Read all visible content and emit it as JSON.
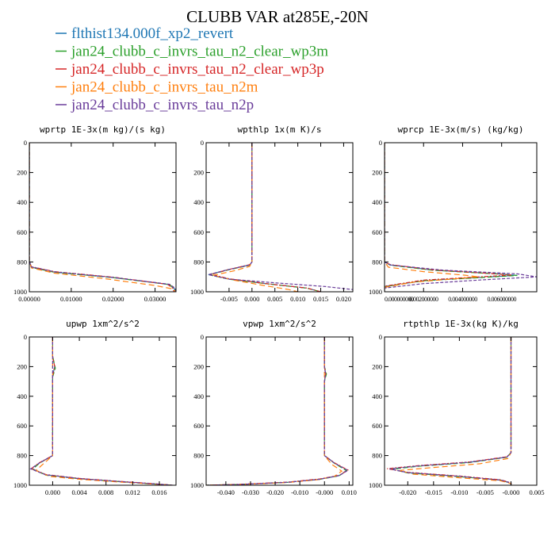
{
  "figure": {
    "title": "CLUBB VAR at285E,-20N"
  },
  "colors": {
    "flthist134.000f_xp2_revert": "#1f77b4",
    "jan24_clubb_c_invrs_tau_n2_clear_wp3m": "#2ca02c",
    "jan24_clubb_c_invrs_tau_n2_clear_wp3p": "#d62728",
    "jan24_clubb_c_invrs_tau_n2m": "#ff7f0e",
    "jan24_clubb_c_invrs_tau_n2p": "#6a3d9a"
  },
  "legend": {
    "entries": [
      {
        "label": "flthist134.000f_xp2_revert",
        "color": "#1f77b4"
      },
      {
        "label": "jan24_clubb_c_invrs_tau_n2_clear_wp3m",
        "color": "#2ca02c"
      },
      {
        "label": "jan24_clubb_c_invrs_tau_n2_clear_wp3p",
        "color": "#d62728"
      },
      {
        "label": "jan24_clubb_c_invrs_tau_n2m",
        "color": "#ff7f0e"
      },
      {
        "label": "jan24_clubb_c_invrs_tau_n2p",
        "color": "#6a3d9a"
      }
    ]
  },
  "chart_data": [
    {
      "type": "line",
      "title": "wprtp  1E-3x(m kg)/(s kg)",
      "xlim": [
        0,
        0.035
      ],
      "ylim": [
        1000,
        0
      ],
      "xticks": [
        0,
        0.01,
        0.02,
        0.03
      ],
      "xtick_labels": [
        "0.00000",
        "0.01000",
        "0.02000",
        "0.03000"
      ],
      "yticks": [
        0,
        200,
        400,
        600,
        800,
        1000
      ],
      "ytick_labels": [
        "0",
        "200",
        "400",
        "600",
        "800",
        "1000"
      ],
      "series": [
        {
          "name": "flthist134.000f_xp2_revert",
          "x": [
            0,
            0,
            0.0005,
            0.006,
            0.02,
            0.033,
            0.0345,
            0.035
          ],
          "y": [
            0,
            795,
            835,
            868,
            905,
            950,
            975,
            1000
          ]
        },
        {
          "name": "jan24_clubb_c_invrs_tau_n2_clear_wp3m",
          "x": [
            0,
            0,
            0.0005,
            0.006,
            0.02,
            0.0335,
            0.0345,
            0.035
          ],
          "y": [
            0,
            795,
            836,
            869,
            905,
            952,
            978,
            1000
          ]
        },
        {
          "name": "jan24_clubb_c_invrs_tau_n2_clear_wp3p",
          "x": [
            0,
            0,
            0.0005,
            0.006,
            0.02,
            0.033,
            0.0342,
            0.0345
          ],
          "y": [
            0,
            795,
            832,
            865,
            902,
            950,
            975,
            1000
          ]
        },
        {
          "name": "jan24_clubb_c_invrs_tau_n2m",
          "x": [
            0,
            0,
            0.0005,
            0.006,
            0.018,
            0.03,
            0.034,
            0.035
          ],
          "y": [
            0,
            795,
            840,
            875,
            912,
            958,
            980,
            1000
          ]
        },
        {
          "name": "jan24_clubb_c_invrs_tau_n2p",
          "x": [
            0,
            0,
            0.0005,
            0.006,
            0.02,
            0.0335,
            0.0348,
            0.035
          ],
          "y": [
            0,
            795,
            833,
            866,
            903,
            950,
            976,
            1000
          ]
        }
      ]
    },
    {
      "type": "line",
      "title": "wpthlp  1x(m K)/s",
      "xlim": [
        -0.01,
        0.022
      ],
      "ylim": [
        1000,
        0
      ],
      "xticks": [
        -0.005,
        0,
        0.005,
        0.01,
        0.015,
        0.02
      ],
      "xtick_labels": [
        "-0.005",
        "0.000",
        "0.005",
        "0.010",
        "0.015",
        "0.020"
      ],
      "yticks": [
        0,
        200,
        400,
        600,
        800,
        1000
      ],
      "ytick_labels": [
        "0",
        "200",
        "400",
        "600",
        "800",
        "1000"
      ],
      "series": [
        {
          "name": "flthist134.000f_xp2_revert",
          "x": [
            0,
            0,
            -0.0005,
            -0.005,
            -0.0095,
            -0.005,
            0.003,
            0.012,
            0.015
          ],
          "y": [
            0,
            800,
            820,
            850,
            885,
            915,
            945,
            975,
            1000
          ]
        },
        {
          "name": "jan24_clubb_c_invrs_tau_n2_clear_wp3m",
          "x": [
            0,
            0,
            -0.0005,
            -0.005,
            -0.0093,
            -0.005,
            0.003,
            0.012,
            0.015
          ],
          "y": [
            0,
            800,
            822,
            852,
            886,
            916,
            946,
            976,
            1000
          ]
        },
        {
          "name": "jan24_clubb_c_invrs_tau_n2_clear_wp3p",
          "x": [
            0,
            0,
            -0.0005,
            -0.005,
            -0.009,
            -0.005,
            0.003,
            0.012,
            0.015
          ],
          "y": [
            0,
            800,
            818,
            850,
            883,
            913,
            945,
            975,
            1000
          ]
        },
        {
          "name": "jan24_clubb_c_invrs_tau_n2m",
          "x": [
            0,
            0,
            -0.0005,
            -0.004,
            -0.0085,
            -0.004,
            0.002,
            0.008,
            0.01
          ],
          "y": [
            0,
            800,
            830,
            860,
            890,
            922,
            955,
            985,
            1000
          ]
        },
        {
          "name": "jan24_clubb_c_invrs_tau_n2p",
          "x": [
            0,
            0,
            -0.0005,
            -0.005,
            -0.0095,
            -0.005,
            0.005,
            0.016,
            0.022
          ],
          "y": [
            0,
            800,
            820,
            850,
            885,
            915,
            940,
            965,
            985
          ]
        }
      ]
    },
    {
      "type": "line",
      "title": "wprcp  1E-3x(m/s) (kg/kg)",
      "xlim": [
        0,
        0.0078
      ],
      "ylim": [
        1000,
        0
      ],
      "xticks": [
        0,
        0.002,
        0.004,
        0.006
      ],
      "xtick_labels": [
        "0.000000000",
        "0.002000000",
        "0.004000000",
        "0.006000000"
      ],
      "yticks": [
        0,
        200,
        400,
        600,
        800,
        1000
      ],
      "ytick_labels": [
        "0",
        "200",
        "400",
        "600",
        "800",
        "1000"
      ],
      "series": [
        {
          "name": "flthist134.000f_xp2_revert",
          "x": [
            0,
            0,
            0.0003,
            0.0025,
            0.0058,
            0.0068,
            0.002,
            0,
            0
          ],
          "y": [
            0,
            800,
            820,
            855,
            880,
            890,
            925,
            965,
            1000
          ]
        },
        {
          "name": "jan24_clubb_c_invrs_tau_n2_clear_wp3m",
          "x": [
            0,
            0,
            0.0003,
            0.0025,
            0.0058,
            0.0068,
            0.002,
            0,
            0
          ],
          "y": [
            0,
            800,
            822,
            856,
            881,
            891,
            926,
            966,
            1000
          ]
        },
        {
          "name": "jan24_clubb_c_invrs_tau_n2_clear_wp3p",
          "x": [
            0,
            0,
            0.0003,
            0.0025,
            0.0055,
            0.0065,
            0.002,
            0,
            0
          ],
          "y": [
            0,
            800,
            818,
            853,
            878,
            888,
            922,
            962,
            1000
          ]
        },
        {
          "name": "jan24_clubb_c_invrs_tau_n2m",
          "x": [
            0,
            0,
            0.0002,
            0.002,
            0.0042,
            0.0048,
            0.0015,
            0,
            0
          ],
          "y": [
            0,
            800,
            835,
            865,
            890,
            900,
            935,
            970,
            1000
          ]
        },
        {
          "name": "jan24_clubb_c_invrs_tau_n2p",
          "x": [
            0,
            0,
            0.0003,
            0.003,
            0.0068,
            0.0078,
            0.005,
            0.002,
            0
          ],
          "y": [
            0,
            800,
            820,
            855,
            880,
            900,
            920,
            945,
            975
          ]
        }
      ]
    },
    {
      "type": "line",
      "title": "upwp  1xm^2/s^2",
      "xlim": [
        -0.0035,
        0.0185
      ],
      "ylim": [
        1000,
        0
      ],
      "xticks": [
        0,
        0.004,
        0.008,
        0.012,
        0.016
      ],
      "xtick_labels": [
        "0.000",
        "0.004",
        "0.008",
        "0.012",
        "0.016"
      ],
      "yticks": [
        0,
        200,
        400,
        600,
        800,
        1000
      ],
      "ytick_labels": [
        "0",
        "200",
        "400",
        "600",
        "800",
        "1000"
      ],
      "series": [
        {
          "name": "flthist134.000f_xp2_revert",
          "x": [
            0,
            0,
            0.0003,
            0,
            0,
            -0.002,
            -0.003,
            -0.001,
            0.004,
            0.01,
            0.015,
            0.018
          ],
          "y": [
            0,
            130,
            200,
            260,
            800,
            850,
            890,
            930,
            955,
            975,
            990,
            1000
          ]
        },
        {
          "name": "jan24_clubb_c_invrs_tau_n2_clear_wp3m",
          "x": [
            0,
            0,
            0.0004,
            0,
            0,
            -0.002,
            -0.003,
            -0.001,
            0.004,
            0.01,
            0.015,
            0.018
          ],
          "y": [
            0,
            130,
            210,
            270,
            800,
            852,
            892,
            932,
            956,
            976,
            991,
            1000
          ]
        },
        {
          "name": "jan24_clubb_c_invrs_tau_n2_clear_wp3p",
          "x": [
            0,
            0,
            0.0003,
            0,
            0,
            -0.002,
            -0.0032,
            -0.001,
            0.004,
            0.01,
            0.015,
            0.018
          ],
          "y": [
            0,
            130,
            200,
            260,
            800,
            848,
            888,
            928,
            954,
            974,
            989,
            1000
          ]
        },
        {
          "name": "jan24_clubb_c_invrs_tau_n2m",
          "x": [
            0,
            0,
            0,
            0,
            0,
            -0.0015,
            -0.0025,
            -0.0005,
            0.004,
            0.01,
            0.015,
            0.018
          ],
          "y": [
            0,
            130,
            200,
            260,
            800,
            860,
            900,
            940,
            960,
            978,
            992,
            1000
          ]
        },
        {
          "name": "jan24_clubb_c_invrs_tau_n2p",
          "x": [
            0,
            0,
            0,
            0,
            0,
            -0.002,
            -0.0033,
            -0.001,
            0.004,
            0.01,
            0.015,
            0.018
          ],
          "y": [
            0,
            130,
            200,
            260,
            800,
            850,
            890,
            930,
            955,
            975,
            990,
            1000
          ]
        }
      ]
    },
    {
      "type": "line",
      "title": "vpwp  1xm^2/s^2",
      "xlim": [
        -0.048,
        0.0115
      ],
      "ylim": [
        1000,
        0
      ],
      "xticks": [
        -0.04,
        -0.03,
        -0.02,
        -0.01,
        0,
        0.01
      ],
      "xtick_labels": [
        "-0.040",
        "-0.030",
        "-0.020",
        "-0.010",
        "-0.000",
        "0.010"
      ],
      "yticks": [
        0,
        200,
        400,
        600,
        800,
        1000
      ],
      "ytick_labels": [
        "0",
        "200",
        "400",
        "600",
        "800",
        "1000"
      ],
      "series": [
        {
          "name": "flthist134.000f_xp2_revert",
          "x": [
            0,
            0,
            0.0005,
            0,
            0,
            0.004,
            0.009,
            0.006,
            -0.002,
            -0.015,
            -0.035,
            -0.048
          ],
          "y": [
            0,
            200,
            250,
            300,
            800,
            850,
            900,
            935,
            960,
            980,
            995,
            1000
          ]
        },
        {
          "name": "jan24_clubb_c_invrs_tau_n2_clear_wp3m",
          "x": [
            0,
            0,
            0.0008,
            0,
            0,
            0.004,
            0.009,
            0.006,
            -0.002,
            -0.015,
            -0.035,
            -0.048
          ],
          "y": [
            0,
            200,
            250,
            300,
            800,
            852,
            902,
            936,
            961,
            981,
            995,
            1000
          ]
        },
        {
          "name": "jan24_clubb_c_invrs_tau_n2_clear_wp3p",
          "x": [
            0,
            0,
            0.0005,
            0,
            0,
            0.004,
            0.0095,
            0.006,
            -0.002,
            -0.015,
            -0.035,
            -0.048
          ],
          "y": [
            0,
            200,
            250,
            300,
            800,
            848,
            898,
            933,
            958,
            979,
            994,
            1000
          ]
        },
        {
          "name": "jan24_clubb_c_invrs_tau_n2m",
          "x": [
            0,
            0,
            0,
            0,
            0,
            0.003,
            0.007,
            0.004,
            -0.003,
            -0.015,
            -0.035,
            -0.048
          ],
          "y": [
            0,
            200,
            250,
            300,
            800,
            860,
            905,
            940,
            963,
            982,
            995,
            1000
          ]
        },
        {
          "name": "jan24_clubb_c_invrs_tau_n2p",
          "x": [
            0,
            0,
            0.0004,
            0,
            0,
            0.004,
            0.0095,
            0.006,
            -0.002,
            -0.015,
            -0.035,
            -0.048
          ],
          "y": [
            0,
            200,
            250,
            300,
            800,
            850,
            900,
            935,
            960,
            980,
            995,
            1000
          ]
        }
      ]
    },
    {
      "type": "line",
      "title": "rtpthlp  1E-3x(kg K)/kg",
      "xlim": [
        -0.0245,
        0.005
      ],
      "ylim": [
        1000,
        0
      ],
      "xticks": [
        -0.02,
        -0.015,
        -0.01,
        -0.005,
        0,
        0.005
      ],
      "xtick_labels": [
        "-0.020",
        "-0.015",
        "-0.010",
        "-0.005",
        "-0.000",
        "0.005"
      ],
      "yticks": [
        0,
        200,
        400,
        600,
        800,
        1000
      ],
      "ytick_labels": [
        "0",
        "200",
        "400",
        "600",
        "800",
        "1000"
      ],
      "series": [
        {
          "name": "flthist134.000f_xp2_revert",
          "x": [
            0,
            0,
            -0.0008,
            -0.008,
            -0.018,
            -0.0235,
            -0.02,
            -0.01,
            -0.002,
            0,
            0
          ],
          "y": [
            0,
            780,
            810,
            845,
            870,
            890,
            915,
            940,
            965,
            985,
            1000
          ]
        },
        {
          "name": "jan24_clubb_c_invrs_tau_n2_clear_wp3m",
          "x": [
            0,
            0,
            -0.0008,
            -0.008,
            -0.018,
            -0.023,
            -0.02,
            -0.01,
            -0.002,
            0,
            0
          ],
          "y": [
            0,
            780,
            812,
            847,
            872,
            892,
            917,
            942,
            966,
            986,
            1000
          ]
        },
        {
          "name": "jan24_clubb_c_invrs_tau_n2_clear_wp3p",
          "x": [
            0,
            0,
            -0.0008,
            -0.008,
            -0.018,
            -0.024,
            -0.02,
            -0.01,
            -0.002,
            0,
            0
          ],
          "y": [
            0,
            780,
            808,
            843,
            868,
            888,
            913,
            938,
            963,
            984,
            1000
          ]
        },
        {
          "name": "jan24_clubb_c_invrs_tau_n2m",
          "x": [
            0,
            0,
            -0.0006,
            -0.006,
            -0.015,
            -0.0215,
            -0.019,
            -0.01,
            -0.002,
            0,
            0
          ],
          "y": [
            0,
            780,
            820,
            855,
            880,
            900,
            925,
            950,
            970,
            988,
            1000
          ]
        },
        {
          "name": "jan24_clubb_c_invrs_tau_n2p",
          "x": [
            0,
            0,
            -0.0008,
            -0.008,
            -0.018,
            -0.0235,
            -0.02,
            -0.01,
            -0.002,
            0,
            0
          ],
          "y": [
            0,
            780,
            810,
            845,
            870,
            890,
            915,
            940,
            965,
            985,
            1000
          ]
        }
      ]
    }
  ]
}
